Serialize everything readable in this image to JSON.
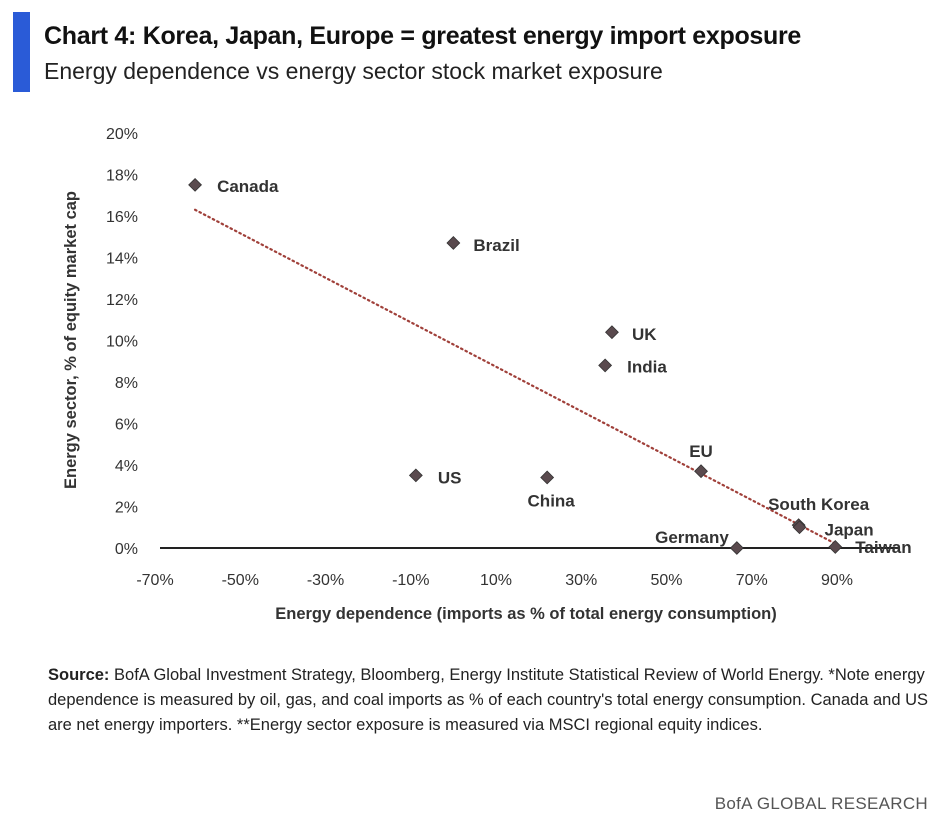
{
  "header": {
    "title": "Chart 4: Korea, Japan, Europe = greatest energy import exposure",
    "subtitle": "Energy dependence vs energy sector stock market exposure",
    "accent_color": "#2a5bd7"
  },
  "chart_data": {
    "type": "scatter",
    "title": "Chart 4: Korea, Japan, Europe = greatest energy import exposure",
    "subtitle": "Energy dependence vs energy sector stock market exposure",
    "xlabel": "Energy dependence (imports as % of total energy consumption)",
    "ylabel": "Energy sector, % of equity market cap",
    "xlim": [
      -70,
      90
    ],
    "ylim": [
      0,
      20
    ],
    "xticks": [
      "-70%",
      "-50%",
      "-30%",
      "-10%",
      "10%",
      "30%",
      "50%",
      "70%",
      "90%"
    ],
    "yticks": [
      "0%",
      "2%",
      "4%",
      "6%",
      "8%",
      "10%",
      "12%",
      "14%",
      "16%",
      "18%",
      "20%"
    ],
    "grid": false,
    "points": [
      {
        "label": "Canada",
        "x": -60.6,
        "y": 17.5
      },
      {
        "label": "Brazil",
        "x": 0,
        "y": 14.7
      },
      {
        "label": "UK",
        "x": 37.2,
        "y": 10.4
      },
      {
        "label": "India",
        "x": 35.6,
        "y": 8.8
      },
      {
        "label": "EU",
        "x": 58.1,
        "y": 3.7
      },
      {
        "label": "US",
        "x": -8.8,
        "y": 3.5
      },
      {
        "label": "China",
        "x": 22,
        "y": 3.4
      },
      {
        "label": "South Korea",
        "x": 81,
        "y": 1.1
      },
      {
        "label": "Japan",
        "x": 81.2,
        "y": 1.0
      },
      {
        "label": "Germany",
        "x": 66.5,
        "y": 0
      },
      {
        "label": "Taiwan",
        "x": 89.6,
        "y": 0.05
      }
    ],
    "trendline": {
      "style": "dotted",
      "color": "#a0403a",
      "x": [
        -60.6,
        89.7
      ],
      "y": [
        16.3,
        0.2
      ]
    },
    "marker_color": "#5a4a4e"
  },
  "source": {
    "label": "Source:",
    "text": " BofA Global Investment Strategy, Bloomberg, Energy Institute Statistical Review of World Energy. *Note energy dependence is measured by oil, gas, and coal imports as % of each country's total energy consumption. Canada and US are net energy importers. **Energy sector exposure is measured via MSCI regional equity indices."
  },
  "brand": "BofA GLOBAL RESEARCH"
}
